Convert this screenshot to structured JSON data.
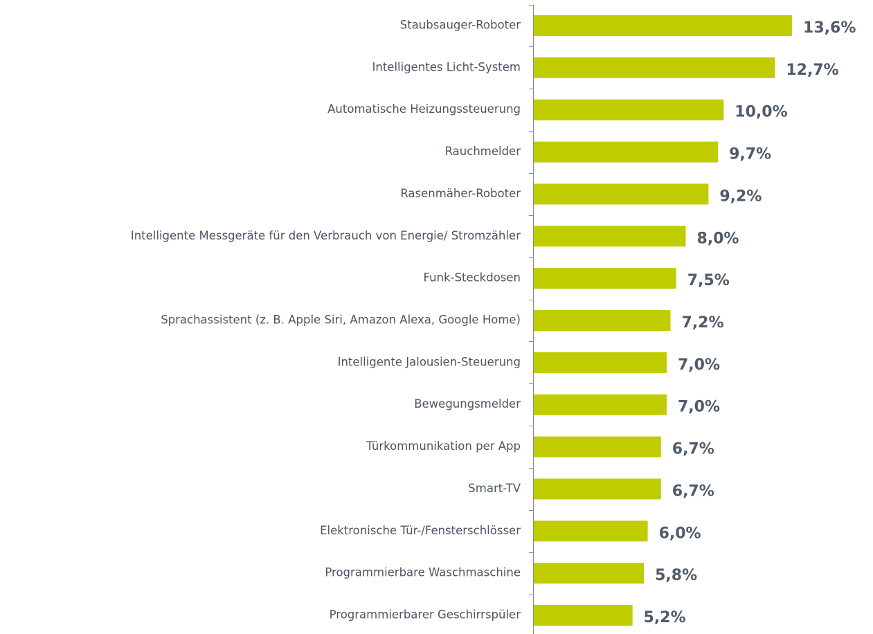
{
  "chart_data": {
    "type": "bar",
    "orientation": "horizontal",
    "categories": [
      "Staubsauger-Roboter",
      "Intelligentes Licht-System",
      "Automatische Heizungssteuerung",
      "Rauchmelder",
      "Rasenmäher-Roboter",
      "Intelligente Messgeräte für den Verbrauch von Energie/ Stromzähler",
      "Funk-Steckdosen",
      "Sprachassistent (z. B. Apple Siri, Amazon Alexa, Google Home)",
      "Intelligente Jalousien-Steuerung",
      "Bewegungsmelder",
      "Türkommunikation per App",
      "Smart-TV",
      "Elektronische Tür-/Fensterschlösser",
      "Programmierbare Waschmaschine",
      "Programmierbarer Geschirrspüler"
    ],
    "values": [
      13.6,
      12.7,
      10.0,
      9.7,
      9.2,
      8.0,
      7.5,
      7.2,
      7.0,
      7.0,
      6.7,
      6.7,
      6.0,
      5.8,
      5.2
    ],
    "value_labels": [
      "13,6%",
      "12,7%",
      "10,0%",
      "9,7%",
      "9,2%",
      "8,0%",
      "7,5%",
      "7,2%",
      "7,0%",
      "7,0%",
      "6,7%",
      "6,7%",
      "6,0%",
      "5,8%",
      "5,2%"
    ],
    "color": "#bfcd00"
  }
}
